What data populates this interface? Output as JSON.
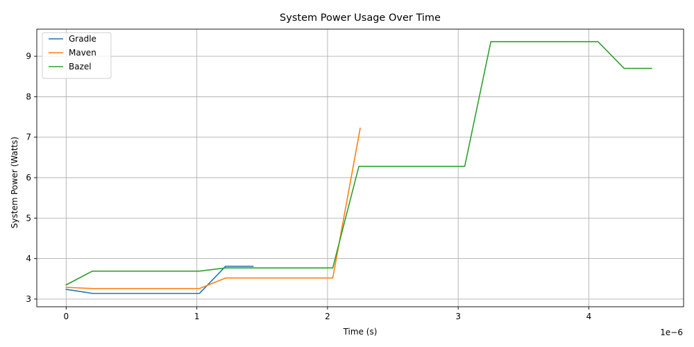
{
  "chart_data": {
    "type": "line",
    "title": "System Power Usage Over Time",
    "xlabel": "Time (s)",
    "ylabel": "System Power (Watts)",
    "x_scale_label": "1e−6",
    "x_ticks": [
      0,
      1,
      2,
      3,
      4
    ],
    "y_ticks": [
      3,
      4,
      5,
      6,
      7,
      8,
      9
    ],
    "xlim": [
      -0.225,
      4.725
    ],
    "ylim": [
      2.81,
      9.67
    ],
    "grid": true,
    "legend_position": "top-left",
    "series": [
      {
        "name": "Gradle",
        "color": "#1f77b4",
        "x": [
          0,
          0.2,
          1.02,
          1.22,
          1.43
        ],
        "y": [
          3.24,
          3.14,
          3.14,
          3.81,
          3.81
        ]
      },
      {
        "name": "Maven",
        "color": "#ff7f0e",
        "x": [
          0,
          0.2,
          1.02,
          1.22,
          2.04,
          2.25
        ],
        "y": [
          3.29,
          3.26,
          3.26,
          3.52,
          3.52,
          7.22
        ]
      },
      {
        "name": "Bazel",
        "color": "#2ca02c",
        "x": [
          0,
          0.2,
          1.02,
          1.22,
          2.04,
          2.24,
          3.05,
          3.25,
          4.07,
          4.27,
          4.48
        ],
        "y": [
          3.35,
          3.69,
          3.69,
          3.77,
          3.77,
          6.28,
          6.28,
          9.36,
          9.36,
          8.7,
          8.7
        ]
      }
    ]
  }
}
